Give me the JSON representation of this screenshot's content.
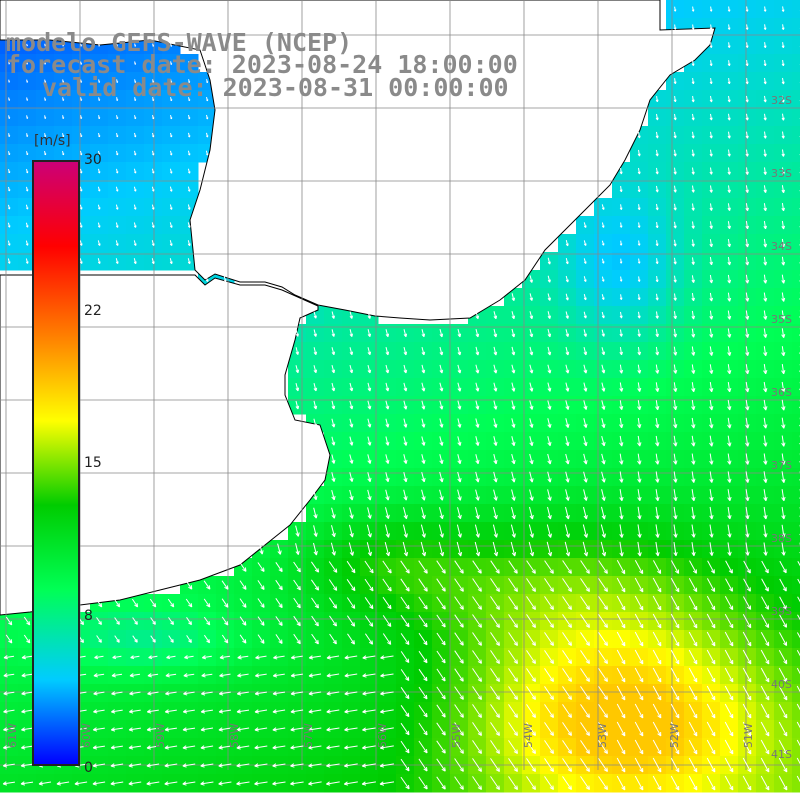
{
  "header": {
    "title_line1": "modelo GEFS-WAVE (NCEP)",
    "title_line2": "forecast date: 2023-08-24 18:00:00",
    "title_line3": "valid date: 2023-08-31 00:00:00"
  },
  "colorbar": {
    "unit": "[m/s]",
    "ticks": [
      "30",
      "22",
      "15",
      "8",
      "0"
    ],
    "range": [
      0,
      30
    ],
    "colors": [
      "#0000ff",
      "#00ccff",
      "#00ff55",
      "#00cc00",
      "#ffff00",
      "#ff8000",
      "#ff0000",
      "#cc0077"
    ]
  },
  "map": {
    "variable": "wind speed",
    "land_color": "#ffffff",
    "grid_color": "#888888",
    "coast_color": "#000000",
    "arrow_color": "#ffffff",
    "lat_labels": [
      "32S",
      "33S",
      "34S",
      "35S",
      "36S",
      "37S",
      "38S",
      "39S",
      "40S",
      "41S"
    ],
    "lon_labels": [
      "61W",
      "60W",
      "59W",
      "58W",
      "57W",
      "56W",
      "55W",
      "54W",
      "53W",
      "52W",
      "51W"
    ]
  }
}
